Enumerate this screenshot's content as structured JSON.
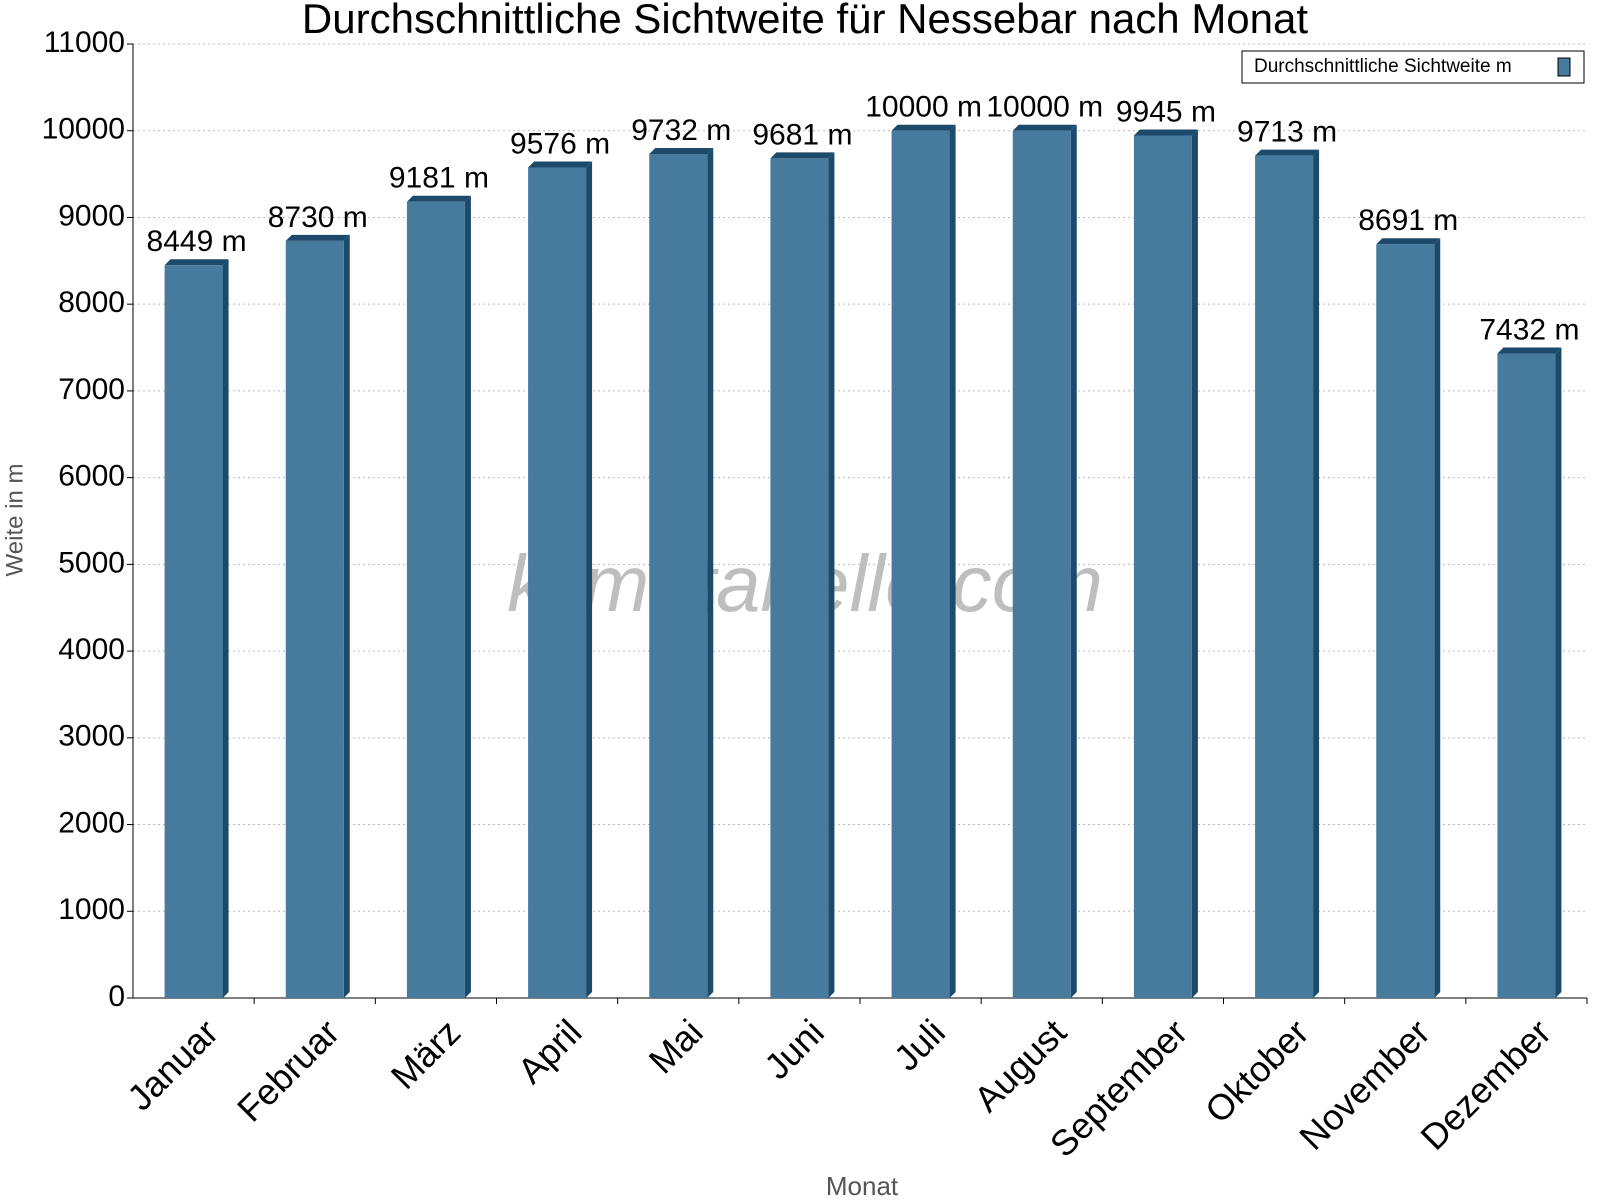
{
  "chart_data": {
    "type": "bar",
    "title": "Durchschnittliche Sichtweite für Nessebar nach Monat",
    "x_label": "Monat",
    "y_label": "Weite in m",
    "watermark": "klimatabelle.com",
    "categories": [
      "Januar",
      "Februar",
      "März",
      "April",
      "Mai",
      "Juni",
      "Juli",
      "August",
      "September",
      "Oktober",
      "November",
      "Dezember"
    ],
    "series": [
      {
        "name": "Durchschnittliche Sichtweite m",
        "color": "#477b9e",
        "edge_color": "#1c4a6b",
        "values": [
          8449,
          8730,
          9181,
          9576,
          9732,
          9681,
          10000,
          10000,
          9945,
          9713,
          8691,
          7432
        ],
        "value_labels": [
          "8449 m",
          "8730 m",
          "9181 m",
          "9576 m",
          "9732 m",
          "9681 m",
          "10000 m",
          "10000 m",
          "9945 m",
          "9713 m",
          "8691 m",
          "7432 m"
        ]
      }
    ],
    "ylim": [
      0,
      11000
    ],
    "yticks": [
      0,
      1000,
      2000,
      3000,
      4000,
      5000,
      6000,
      7000,
      8000,
      9000,
      10000,
      11000
    ],
    "grid": true,
    "legend": "top-right"
  }
}
